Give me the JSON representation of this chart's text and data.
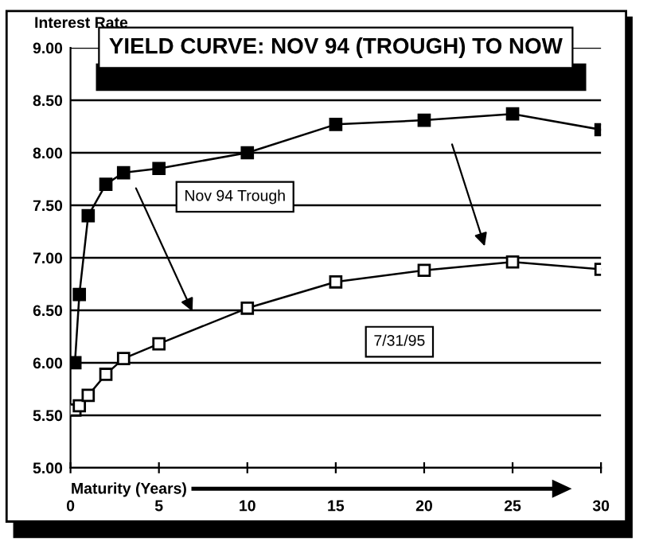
{
  "chart_data": {
    "type": "line",
    "title": "YIELD CURVE: NOV 94 (TROUGH) TO NOW",
    "ylabel": "Interest Rate",
    "xlabel": "Maturity (Years)",
    "x": [
      0.25,
      0.5,
      1,
      2,
      3,
      5,
      10,
      15,
      20,
      25,
      30
    ],
    "series": [
      {
        "color": "#000000",
        "values": [
          6.0,
          6.65,
          7.4,
          7.7,
          7.81,
          7.85,
          8.0,
          8.27,
          8.31,
          8.37,
          8.22
        ]
      },
      {
        "color": "#000000",
        "values": [
          5.55,
          5.59,
          5.69,
          5.89,
          6.04,
          6.18,
          6.52,
          6.77,
          6.88,
          6.96,
          6.89
        ]
      }
    ],
    "annotations": [
      "Nov 94 Trough",
      "7/31/95"
    ],
    "xlim": [
      0,
      30
    ],
    "ylim": [
      5,
      9
    ],
    "xticks": [
      0,
      5,
      10,
      15,
      20,
      25,
      30
    ],
    "yticks": [
      {
        "value": 5,
        "label": "5.00"
      },
      {
        "value": 5.5,
        "label": "5.50"
      },
      {
        "value": 6,
        "label": "6.00"
      },
      {
        "value": 6.5,
        "label": "6.50"
      },
      {
        "value": 7,
        "label": "7.00"
      },
      {
        "value": 7.5,
        "label": "7.50"
      },
      {
        "value": 8,
        "label": "8.00"
      },
      {
        "value": 8.5,
        "label": "8.50"
      },
      {
        "value": 9,
        "label": "9.00"
      }
    ],
    "grid": "y",
    "marker": "square",
    "line_style": "solid"
  }
}
